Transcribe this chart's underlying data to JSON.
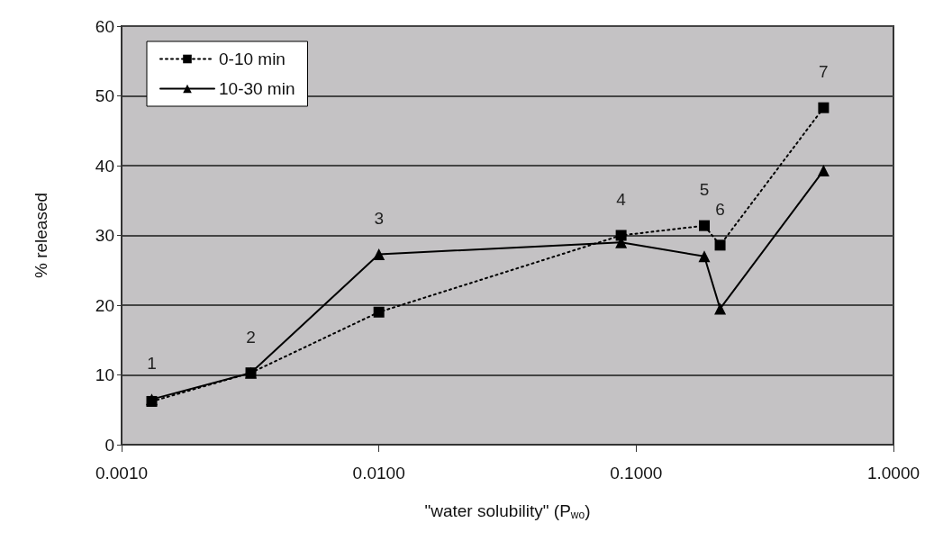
{
  "chart_data": {
    "type": "line",
    "xlabel": "\"water solubility\" (P$_{wo}$)",
    "ylabel": "% released",
    "log": "x",
    "xlim": [
      0.001,
      1
    ],
    "xticks": [
      {
        "value": 0.001,
        "label": "0.0010"
      },
      {
        "value": 0.01,
        "label": "0.0100"
      },
      {
        "value": 0.1,
        "label": "0.1000"
      },
      {
        "value": 1,
        "label": "1.0000"
      }
    ],
    "ylim": [
      0,
      60
    ],
    "yticks": [
      0,
      10,
      20,
      30,
      40,
      50,
      60
    ],
    "grid": "y",
    "legend": "top left",
    "x": [
      0.00131,
      0.00318,
      0.01,
      0.0874,
      0.184,
      0.212,
      0.535
    ],
    "series": [
      {
        "name": "0-10 min",
        "color": "#000000",
        "marker": "square",
        "line_style": "dotted",
        "values": [
          6.2,
          10.3,
          19,
          30,
          31.4,
          28.6,
          48.3
        ]
      },
      {
        "name": "10-30 min",
        "color": "#000000",
        "marker": "triangle",
        "line_style": "solid",
        "values": [
          6.5,
          10.3,
          27.3,
          29,
          27,
          19.5,
          39.3
        ]
      }
    ],
    "annotations": [
      {
        "text": "1",
        "x": 0.00131,
        "y": 6.5
      },
      {
        "text": "2",
        "x": 0.00318,
        "y": 10.3
      },
      {
        "text": "3",
        "x": 0.01,
        "y": 27.3
      },
      {
        "text": "4",
        "x": 0.0874,
        "y": 30
      },
      {
        "text": "5",
        "x": 0.184,
        "y": 31.4
      },
      {
        "text": "6",
        "x": 0.212,
        "y": 28.6
      },
      {
        "text": "7",
        "x": 0.535,
        "y": 48.3
      }
    ]
  }
}
